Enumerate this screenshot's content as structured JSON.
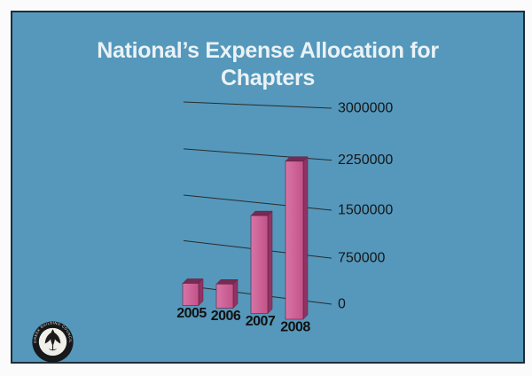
{
  "slide": {
    "title_line1": "National’s Expense Allocation for",
    "title_line2": "Chapters",
    "background_color": "#5598BB",
    "border_color": "#1E2D3A",
    "title_color": "#EAF2F6"
  },
  "chart_data": {
    "type": "bar",
    "projection": "3d-perspective",
    "title": "National’s Expense Allocation for Chapters",
    "categories": [
      "2005",
      "2006",
      "2007",
      "2008"
    ],
    "values": [
      400000,
      400000,
      1500000,
      2250000
    ],
    "xlabel": "",
    "ylabel": "",
    "ylim": [
      0,
      3000000
    ],
    "yticks": [
      0,
      750000,
      1500000,
      2250000,
      3000000
    ],
    "ytick_labels": [
      "0",
      "750000",
      "1500000",
      "2250000",
      "3000000"
    ],
    "grid": true,
    "legend": "none",
    "gridline_color": "#2B2B2B",
    "axis_label_color": "#161616",
    "bar_colors": {
      "front_left": "#D874A6",
      "front_right": "#C25389",
      "side": "#8F3364",
      "top": "#772B52",
      "outline": "#5E1F42"
    }
  },
  "logo": {
    "type": "circular-seal",
    "text_top": "GREEK BUILDING COUNCIL",
    "text_bottom": "USGBC"
  }
}
